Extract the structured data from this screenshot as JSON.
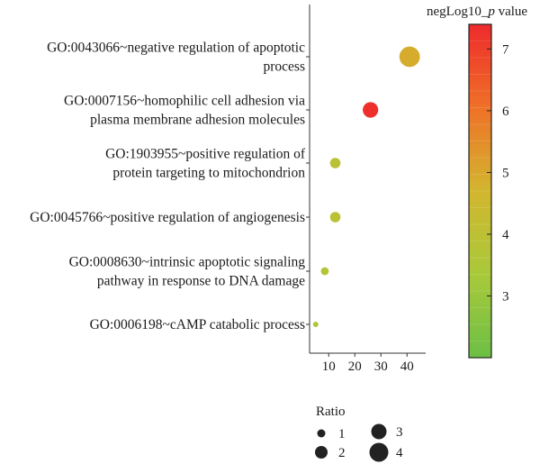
{
  "chart_data": {
    "type": "scatter",
    "title": "",
    "xlabel": "",
    "ylabel": "",
    "x_ticks": [
      "10",
      "20",
      "30",
      "40"
    ],
    "xlim": [
      3,
      45
    ],
    "terms": [
      {
        "lines": [
          "GO:0043066~negative regulation of apoptotic",
          "process"
        ],
        "x": 41,
        "ratio": 4,
        "neglog10p": 4.9
      },
      {
        "lines": [
          "GO:0007156~homophilic cell adhesion via",
          "plasma membrane adhesion molecules"
        ],
        "x": 26,
        "ratio": 3,
        "neglog10p": 7.3
      },
      {
        "lines": [
          "GO:1903955~positive regulation of",
          "protein targeting to mitochondrion"
        ],
        "x": 12.5,
        "ratio": 2,
        "neglog10p": 3.9
      },
      {
        "lines": [
          "GO:0045766~positive regulation of angiogenesis"
        ],
        "x": 12.5,
        "ratio": 2,
        "neglog10p": 3.9
      },
      {
        "lines": [
          "GO:0008630~intrinsic apoptotic signaling",
          "pathway in response to DNA damage"
        ],
        "x": 8.5,
        "ratio": 1.5,
        "neglog10p": 3.7
      },
      {
        "lines": [
          "GO:0006198~cAMP catabolic process"
        ],
        "x": 5,
        "ratio": 1,
        "neglog10p": 3.6
      }
    ],
    "color_scale": {
      "title_prefix": "negLog10_",
      "title_italic": "p",
      "title_suffix": " value",
      "min": 2,
      "max": 7.4,
      "ticks": [
        "3",
        "4",
        "5",
        "6",
        "7"
      ],
      "colors": [
        "#6cbf45",
        "#a9c93a",
        "#d2b62e",
        "#ef7128",
        "#ee2a2c"
      ]
    },
    "size_legend": {
      "title": "Ratio",
      "items": [
        "1",
        "2",
        "3",
        "4"
      ]
    }
  }
}
